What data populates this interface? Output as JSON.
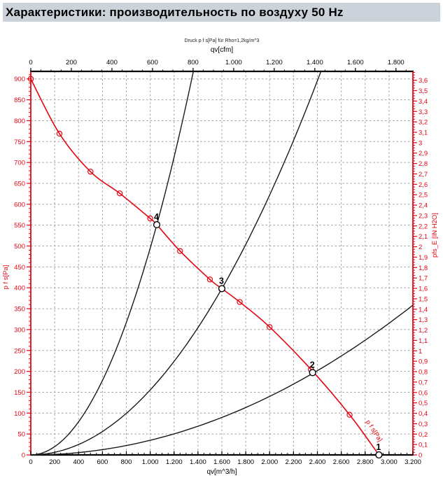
{
  "header": {
    "title": "Характеристики: производительность по воздуху 50 Hz",
    "bg_color": "#cbd2da"
  },
  "colors": {
    "curve_red": "#e30613",
    "curve_black": "#1a1a1a",
    "grid": "#a0a0a0",
    "axis_black": "#000000"
  },
  "chart_data": {
    "type": "line",
    "note": "Druck p f s[Pa] für Rho=1,2kg/m^3",
    "axes": {
      "top": {
        "label": "qv[cfm]",
        "min": 0,
        "max": 1883.4,
        "tick_step": 200,
        "minor_step": 50,
        "tick_labels": [
          "0",
          "200",
          "400",
          "600",
          "800",
          "1.000",
          "1.200",
          "1.400",
          "1.600",
          "1.800"
        ],
        "color": "#000000"
      },
      "bottom": {
        "label": "qv[m^3/h]",
        "min": 0,
        "max": 3200,
        "tick_step": 200,
        "minor_step": 50,
        "tick_labels": [
          "0",
          "200",
          "400",
          "600",
          "800",
          "1.000",
          "1.200",
          "1.400",
          "1.600",
          "1.800",
          "2.000",
          "2.200",
          "2.400",
          "2.600",
          "2.800",
          "3.000",
          "3.200"
        ],
        "color": "#000000"
      },
      "left": {
        "label": "p f s[Pa]",
        "min": 0,
        "max": 918,
        "tick_step": 50,
        "minor_step": 10,
        "tick_labels": [
          "0",
          "50",
          "100",
          "150",
          "200",
          "250",
          "300",
          "350",
          "400",
          "450",
          "500",
          "550",
          "600",
          "650",
          "700",
          "750",
          "800",
          "850",
          "900"
        ],
        "color": "#e30613"
      },
      "right": {
        "label": "pfs_E [IN H2O]",
        "min": 0,
        "max": 3.685,
        "tick_step": 0.1,
        "minor_step": 0.025,
        "tick_labels": [
          "0",
          "0,1",
          "0,2",
          "0,3",
          "0,4",
          "0,5",
          "0,6",
          "0,7",
          "0,8",
          "0,9",
          "1",
          "1,1",
          "1,2",
          "1,3",
          "1,4",
          "1,5",
          "1,6",
          "1,7",
          "1,8",
          "1,9",
          "2",
          "2,1",
          "2,2",
          "2,3",
          "2,4",
          "2,5",
          "2,6",
          "2,7",
          "2,8",
          "2,9",
          "3",
          "3,1",
          "3,2",
          "3,3",
          "3,4",
          "3,5",
          "3,6"
        ],
        "color": "#e30613"
      }
    },
    "grid": {
      "x_step_m3h": 200,
      "y_step_pa": 50,
      "style": "dashed"
    },
    "fan_curve": {
      "name": "p f s[Pa]",
      "color": "#e30613",
      "points_m3h_pa": [
        [
          0,
          900
        ],
        [
          240,
          769
        ],
        [
          500,
          678
        ],
        [
          745,
          626
        ],
        [
          1000,
          566
        ],
        [
          1055,
          551
        ],
        [
          1250,
          488
        ],
        [
          1500,
          420
        ],
        [
          1600,
          398
        ],
        [
          1750,
          366
        ],
        [
          2000,
          306
        ],
        [
          2345,
          205
        ],
        [
          2670,
          96
        ],
        [
          2915,
          0
        ]
      ],
      "marker_points_m3h_pa": [
        [
          0,
          900
        ],
        [
          240,
          769
        ],
        [
          500,
          678
        ],
        [
          745,
          626
        ],
        [
          1000,
          566
        ],
        [
          1250,
          488
        ],
        [
          1500,
          420
        ],
        [
          1750,
          366
        ],
        [
          2000,
          306
        ],
        [
          2345,
          205
        ],
        [
          2670,
          96
        ]
      ]
    },
    "system_curves": [
      {
        "label": "4",
        "through_m3h_pa": [
          1055,
          551
        ]
      },
      {
        "label": "3",
        "through_m3h_pa": [
          1600,
          398
        ]
      },
      {
        "label": "2",
        "through_m3h_pa": [
          2360,
          195
        ]
      }
    ],
    "operating_points": [
      {
        "label": "1",
        "q_m3h": 2915,
        "p_pa": 0
      },
      {
        "label": "2",
        "q_m3h": 2360,
        "p_pa": 197
      },
      {
        "label": "3",
        "q_m3h": 1600,
        "p_pa": 398
      },
      {
        "label": "4",
        "q_m3h": 1055,
        "p_pa": 551
      }
    ],
    "annotation": {
      "text": "p f s[Pa]",
      "q_m3h": 2860,
      "p_pa": 55,
      "angle_deg": 57,
      "color": "#e30613"
    }
  }
}
